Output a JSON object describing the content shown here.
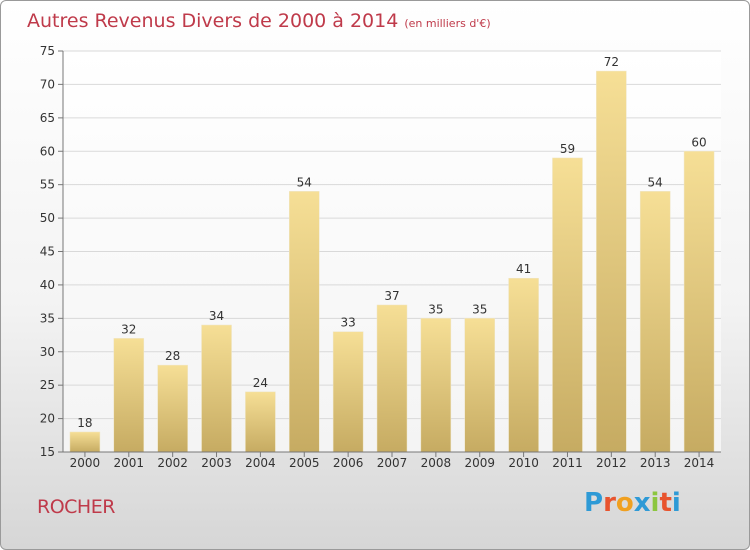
{
  "header": {
    "title": "Autres Revenus Divers de 2000 à 2014",
    "subtitle": "(en milliers d'€)"
  },
  "footer": {
    "commune": "ROCHER",
    "logo_letters": [
      "P",
      "r",
      "o",
      "x",
      "i",
      "t",
      "i"
    ],
    "logo_colors": [
      "#2e9ad6",
      "#e8542e",
      "#f0a020",
      "#2e9ad6",
      "#8cc63f",
      "#e8542e",
      "#2e9ad6"
    ]
  },
  "colors": {
    "title": "#bf3a4a",
    "bar_light": "#f6df96",
    "bar_dark": "#c6ab62",
    "axis": "#777777",
    "grid": "#d9d9d9"
  },
  "chart_data": {
    "type": "bar",
    "categories": [
      "2000",
      "2001",
      "2002",
      "2003",
      "2004",
      "2005",
      "2006",
      "2007",
      "2008",
      "2009",
      "2010",
      "2011",
      "2012",
      "2013",
      "2014"
    ],
    "values": [
      18,
      32,
      28,
      34,
      24,
      54,
      33,
      37,
      35,
      35,
      41,
      59,
      72,
      54,
      60
    ],
    "ylim": [
      15,
      75
    ],
    "yticks": [
      15,
      20,
      25,
      30,
      35,
      40,
      45,
      50,
      55,
      60,
      65,
      70,
      75
    ],
    "grid": "horizontal",
    "data_labels": true
  }
}
